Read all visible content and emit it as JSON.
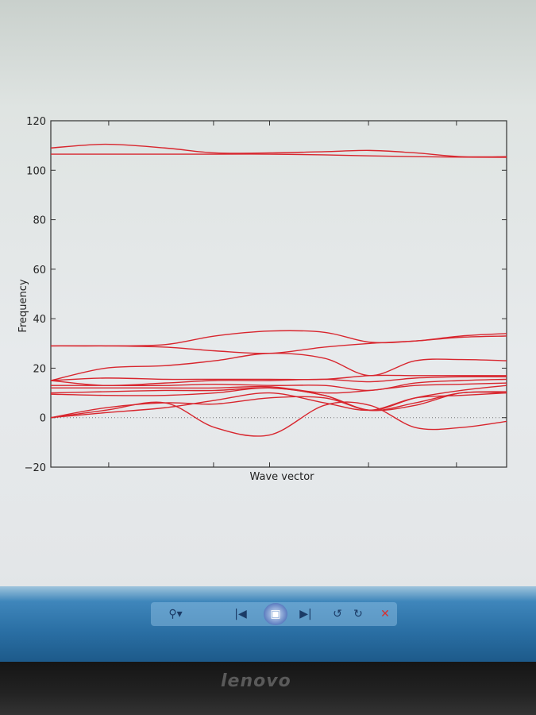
{
  "chart_data": {
    "type": "line",
    "title": "",
    "xlabel": "Wave vector",
    "ylabel": "Frequency",
    "xlim": [
      0,
      1
    ],
    "ylim": [
      -20,
      120
    ],
    "yticks": [
      -20,
      0,
      20,
      40,
      60,
      80,
      100,
      120
    ],
    "xticks_positions": [
      0.127,
      0.357,
      0.48,
      0.697,
      0.89
    ],
    "zero_line": {
      "y": 0,
      "style": "dotted"
    },
    "line_color": "#d8262e",
    "grid": false,
    "x": [
      0,
      0.12,
      0.25,
      0.36,
      0.48,
      0.6,
      0.7,
      0.8,
      0.9,
      1.0
    ],
    "series": [
      {
        "values": [
          109,
          110.5,
          109,
          107,
          107,
          107.5,
          108,
          107,
          105.5,
          105.5
        ]
      },
      {
        "values": [
          106.5,
          106.5,
          106.5,
          106.5,
          106.5,
          106.2,
          105.8,
          105.5,
          105.3,
          105.2
        ]
      },
      {
        "values": [
          29,
          29,
          29.5,
          33,
          35,
          34.5,
          30.5,
          31,
          33,
          34
        ]
      },
      {
        "values": [
          29,
          29,
          28.5,
          27,
          26,
          28.5,
          30,
          31,
          32.5,
          33
        ]
      },
      {
        "values": [
          15,
          20,
          21,
          23,
          26,
          24,
          17,
          23,
          23.5,
          23
        ]
      },
      {
        "values": [
          15,
          16,
          15.5,
          15.5,
          15.5,
          15.5,
          17,
          17,
          17,
          17
        ]
      },
      {
        "values": [
          15,
          13,
          14,
          15,
          15,
          15.5,
          14.5,
          16,
          16.5,
          16.5
        ]
      },
      {
        "values": [
          13,
          13,
          13,
          13.5,
          13,
          13,
          11,
          14,
          15,
          15.5
        ]
      },
      {
        "values": [
          12,
          12,
          12,
          12,
          12.5,
          10,
          11,
          13,
          13.5,
          14
        ]
      },
      {
        "values": [
          10,
          10.5,
          11,
          11,
          12,
          9,
          3,
          8,
          11,
          13
        ]
      },
      {
        "values": [
          9.5,
          9,
          9,
          10,
          12,
          9,
          3,
          6,
          10,
          10.5
        ]
      },
      {
        "values": [
          0,
          4,
          6,
          5.5,
          8,
          8,
          3,
          5,
          10,
          10
        ]
      },
      {
        "values": [
          0,
          3,
          6,
          -4,
          -7,
          5,
          5,
          -4,
          -4,
          -1.5
        ]
      },
      {
        "values": [
          0,
          2,
          4,
          7,
          10,
          6,
          3,
          8,
          9,
          10
        ]
      }
    ]
  },
  "viewer_toolbar": {
    "buttons": [
      {
        "name": "zoom",
        "icon": "magnifier-icon",
        "glyph": "⚲▾"
      },
      {
        "name": "previous",
        "icon": "previous-icon",
        "glyph": "|◀"
      },
      {
        "name": "slideshow",
        "icon": "slideshow-icon",
        "glyph": "▣"
      },
      {
        "name": "next",
        "icon": "next-icon",
        "glyph": "▶|"
      },
      {
        "name": "rotate-counterclockwise",
        "icon": "rotate-ccw-icon",
        "glyph": "↺"
      },
      {
        "name": "rotate-clockwise",
        "icon": "rotate-cw-icon",
        "glyph": "↻"
      },
      {
        "name": "delete",
        "icon": "delete-icon",
        "glyph": "✕"
      }
    ]
  },
  "bezel": {
    "brand": "lenovo"
  }
}
